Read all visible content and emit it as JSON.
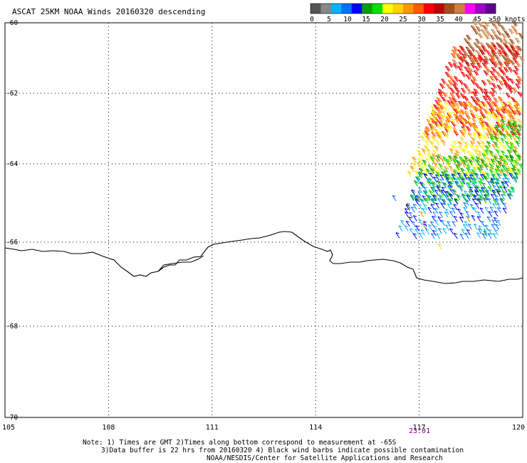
{
  "header": {
    "title": "ASCAT 25KM NOAA Winds 20160320 descending"
  },
  "legend": {
    "colors": [
      "#555555",
      "#888888",
      "#00b4ff",
      "#0070ff",
      "#0000ff",
      "#00a000",
      "#00e000",
      "#ffff00",
      "#ffd400",
      "#ff9800",
      "#ff5a00",
      "#ff0000",
      "#c00000",
      "#a05020",
      "#d08040",
      "#ff00ff",
      "#a000c0",
      "#600090"
    ],
    "tick_labels": [
      "0",
      "5",
      "10",
      "15",
      "20",
      "25",
      "30",
      "35",
      "40",
      "45",
      ">50 knots"
    ]
  },
  "axes": {
    "x_tick_labels": [
      "105",
      "108",
      "111",
      "114",
      "117",
      "120"
    ],
    "y_tick_labels": [
      "-60",
      "-62",
      "-64",
      "-66",
      "-68",
      "-70"
    ],
    "x_range": [
      105,
      120
    ],
    "y_range": [
      -70,
      -60
    ],
    "grid": true
  },
  "time_label": "23:01",
  "notes": [
    "Note: 1) Times are GMT 2)Times along bottom correspond to measurement at -65S",
    "3)Data buffer is 22 hrs from 20160320 4) Black wind barbs indicate possible contamination",
    "NOAA/NESDIS/Center for Satellite Applications and Research"
  ],
  "wind_swath": {
    "bands": [
      {
        "speed_range": "35-45",
        "colors": [
          "#a05020",
          "#d08040",
          "#8b4513"
        ]
      },
      {
        "speed_range": "30-35",
        "colors": [
          "#ff0000",
          "#ff5a00",
          "#e00000"
        ]
      },
      {
        "speed_range": "20-30",
        "colors": [
          "#ffd400",
          "#ffff00",
          "#ff9800"
        ]
      },
      {
        "speed_range": "15-20",
        "colors": [
          "#00a000",
          "#00e000"
        ]
      },
      {
        "speed_range": "5-15",
        "colors": [
          "#0000ff",
          "#0070ff",
          "#00b4ff"
        ]
      }
    ]
  }
}
